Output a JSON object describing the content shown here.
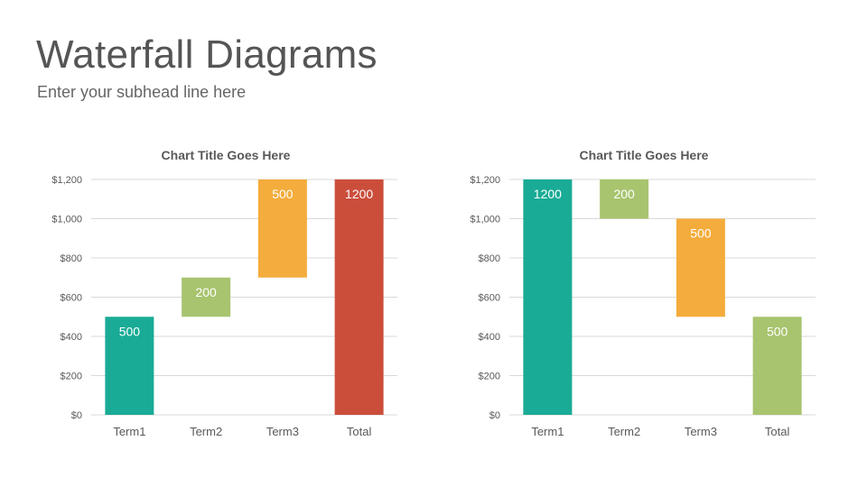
{
  "slide": {
    "title": "Waterfall Diagrams",
    "subtitle": "Enter your subhead line here"
  },
  "chart_data": [
    {
      "type": "bar",
      "title": "Chart Title Goes Here",
      "categories": [
        "Term1",
        "Term2",
        "Term3",
        "Total"
      ],
      "bar_bottoms": [
        0,
        500,
        700,
        0
      ],
      "values": [
        500,
        200,
        500,
        1200
      ],
      "data_labels": [
        "500",
        "200",
        "500",
        "1200"
      ],
      "colors": [
        "#1aab96",
        "#a8c46e",
        "#f4ac3c",
        "#cb4e3b"
      ],
      "ylim": [
        0,
        1200
      ],
      "yticks": [
        0,
        200,
        400,
        600,
        800,
        1000,
        1200
      ],
      "ytick_labels": [
        "$0",
        "$200",
        "$400",
        "$600",
        "$800",
        "$1,000",
        "$1,200"
      ],
      "grid": true,
      "legend": "none"
    },
    {
      "type": "bar",
      "title": "Chart Title Goes Here",
      "categories": [
        "Term1",
        "Term2",
        "Term3",
        "Total"
      ],
      "bar_bottoms": [
        0,
        1000,
        500,
        0
      ],
      "values": [
        1200,
        200,
        500,
        500
      ],
      "data_labels": [
        "1200",
        "200",
        "500",
        "500"
      ],
      "colors": [
        "#1aab96",
        "#a8c46e",
        "#f4ac3c",
        "#a8c46e"
      ],
      "ylim": [
        0,
        1200
      ],
      "yticks": [
        0,
        200,
        400,
        600,
        800,
        1000,
        1200
      ],
      "ytick_labels": [
        "$0",
        "$200",
        "$400",
        "$600",
        "$800",
        "$1,000",
        "$1,200"
      ],
      "grid": true,
      "legend": "none"
    }
  ]
}
